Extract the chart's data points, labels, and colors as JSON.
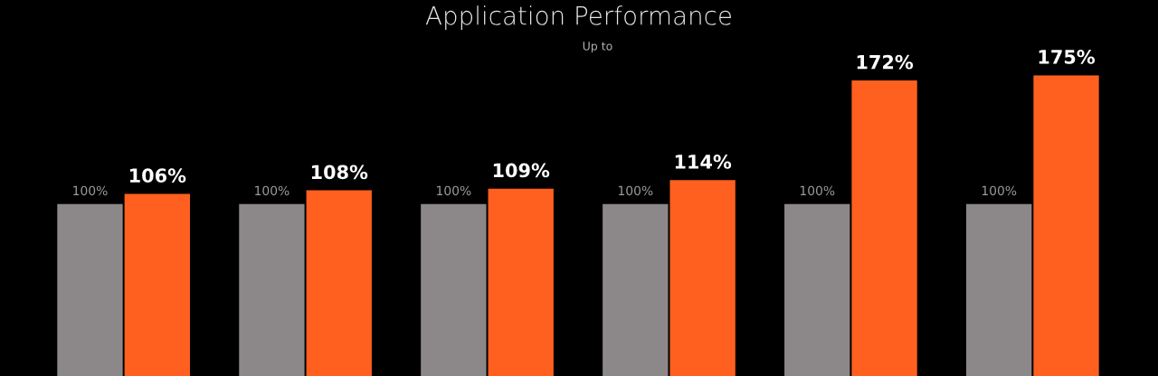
{
  "chart_data": {
    "type": "bar",
    "title": "Application Performance",
    "subtitle": "Up to",
    "categories": [
      null,
      null,
      null,
      null,
      null,
      null
    ],
    "series": [
      {
        "color": "#8c8789",
        "values": [
          100,
          100,
          100,
          100,
          100,
          100
        ],
        "value_labels": [
          "100%",
          "100%",
          "100%",
          "100%",
          "100%",
          "100%"
        ]
      },
      {
        "color": "#ff5f1f",
        "values": [
          106,
          108,
          109,
          114,
          172,
          175
        ],
        "value_labels": [
          "106%",
          "108%",
          "109%",
          "114%",
          "172%",
          "175%"
        ]
      }
    ]
  }
}
